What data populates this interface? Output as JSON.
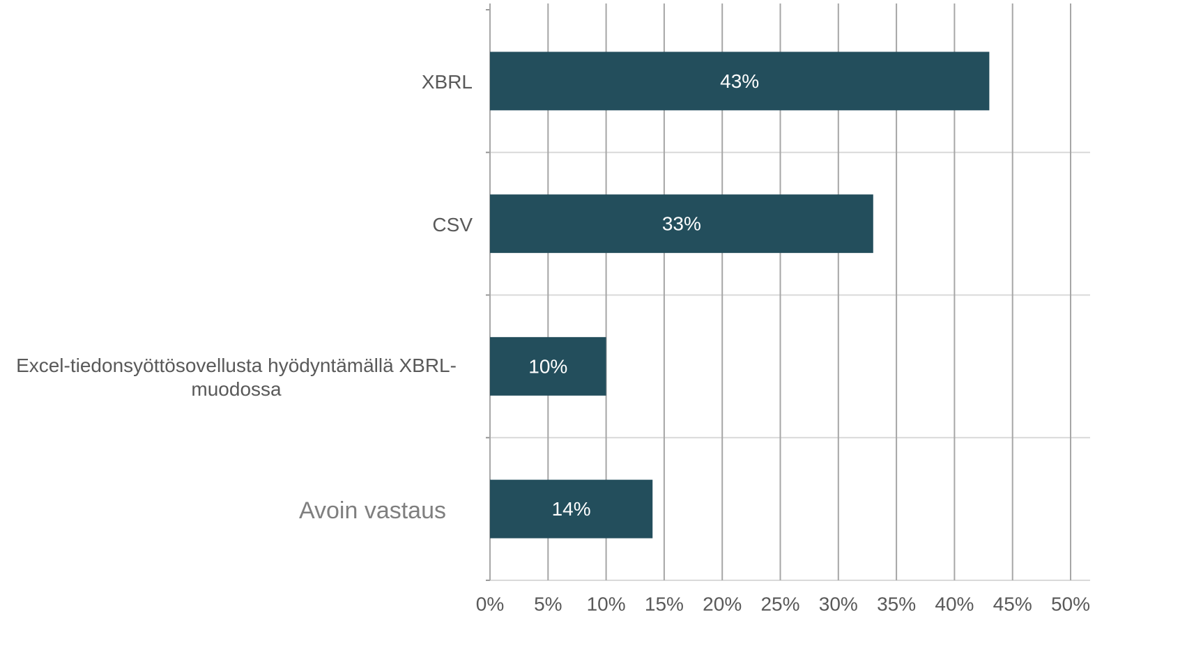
{
  "chart_data": {
    "type": "bar",
    "orientation": "horizontal",
    "categories": [
      "XBRL",
      "CSV",
      "Excel-tiedonsyöttösovellusta hyödyntämällä XBRL-muodossa",
      "Avoin vastaus"
    ],
    "values": [
      43,
      33,
      10,
      14
    ],
    "value_labels": [
      "43%",
      "33%",
      "10%",
      "14%"
    ],
    "color": "#234e5c",
    "xlim": [
      0,
      50
    ],
    "xticks": [
      {
        "value": 0,
        "label": "0%"
      },
      {
        "value": 5,
        "label": "5%"
      },
      {
        "value": 10,
        "label": "10%"
      },
      {
        "value": 15,
        "label": "15%"
      },
      {
        "value": 20,
        "label": "20%"
      },
      {
        "value": 25,
        "label": "25%"
      },
      {
        "value": 30,
        "label": "30%"
      },
      {
        "value": 35,
        "label": "35%"
      },
      {
        "value": 40,
        "label": "40%"
      },
      {
        "value": 45,
        "label": "45%"
      },
      {
        "value": 50,
        "label": "50%"
      }
    ],
    "grid": true
  }
}
